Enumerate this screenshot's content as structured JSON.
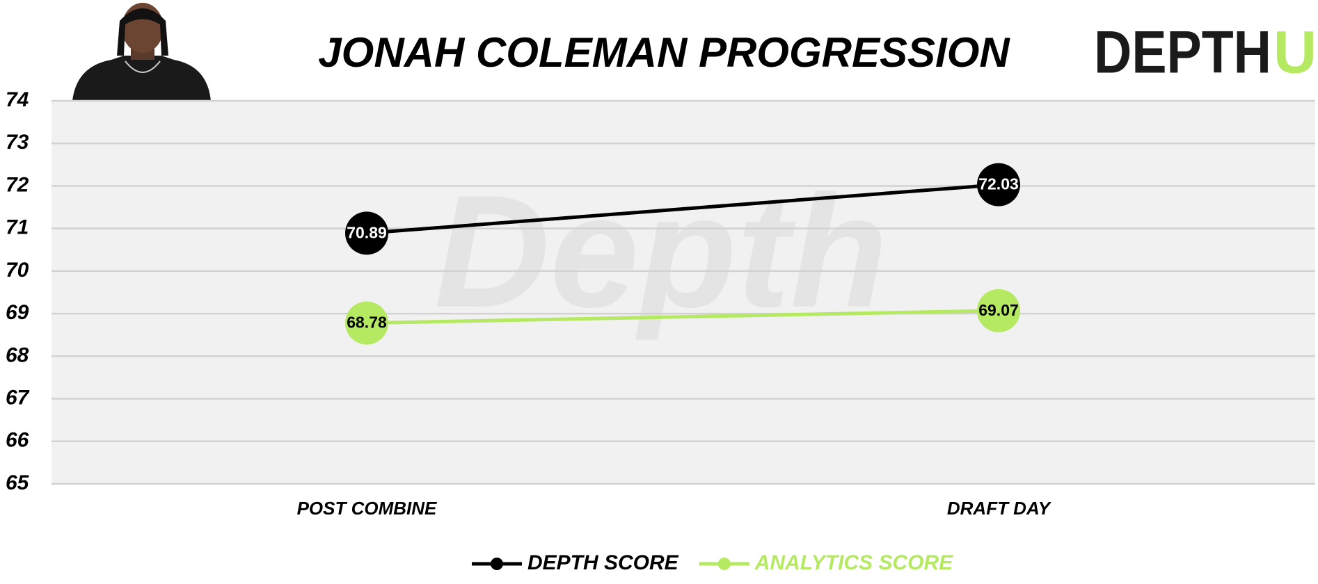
{
  "chart_data": {
    "type": "line",
    "title": "JONAH COLEMAN PROGRESSION",
    "logo": {
      "text": "DEPTH",
      "accent": "U"
    },
    "watermark": "Depth",
    "categories": [
      "POST COMBINE",
      "DRAFT DAY"
    ],
    "series": [
      {
        "name": "DEPTH SCORE",
        "color": "#000000",
        "values": [
          70.89,
          72.03
        ]
      },
      {
        "name": "ANALYTICS SCORE",
        "color": "#b5e961",
        "values": [
          68.78,
          69.07
        ]
      }
    ],
    "ylim": [
      65,
      74
    ],
    "yticks": [
      65,
      66,
      67,
      68,
      69,
      70,
      71,
      72,
      73,
      74
    ],
    "grid": true,
    "legend": "bottom"
  }
}
